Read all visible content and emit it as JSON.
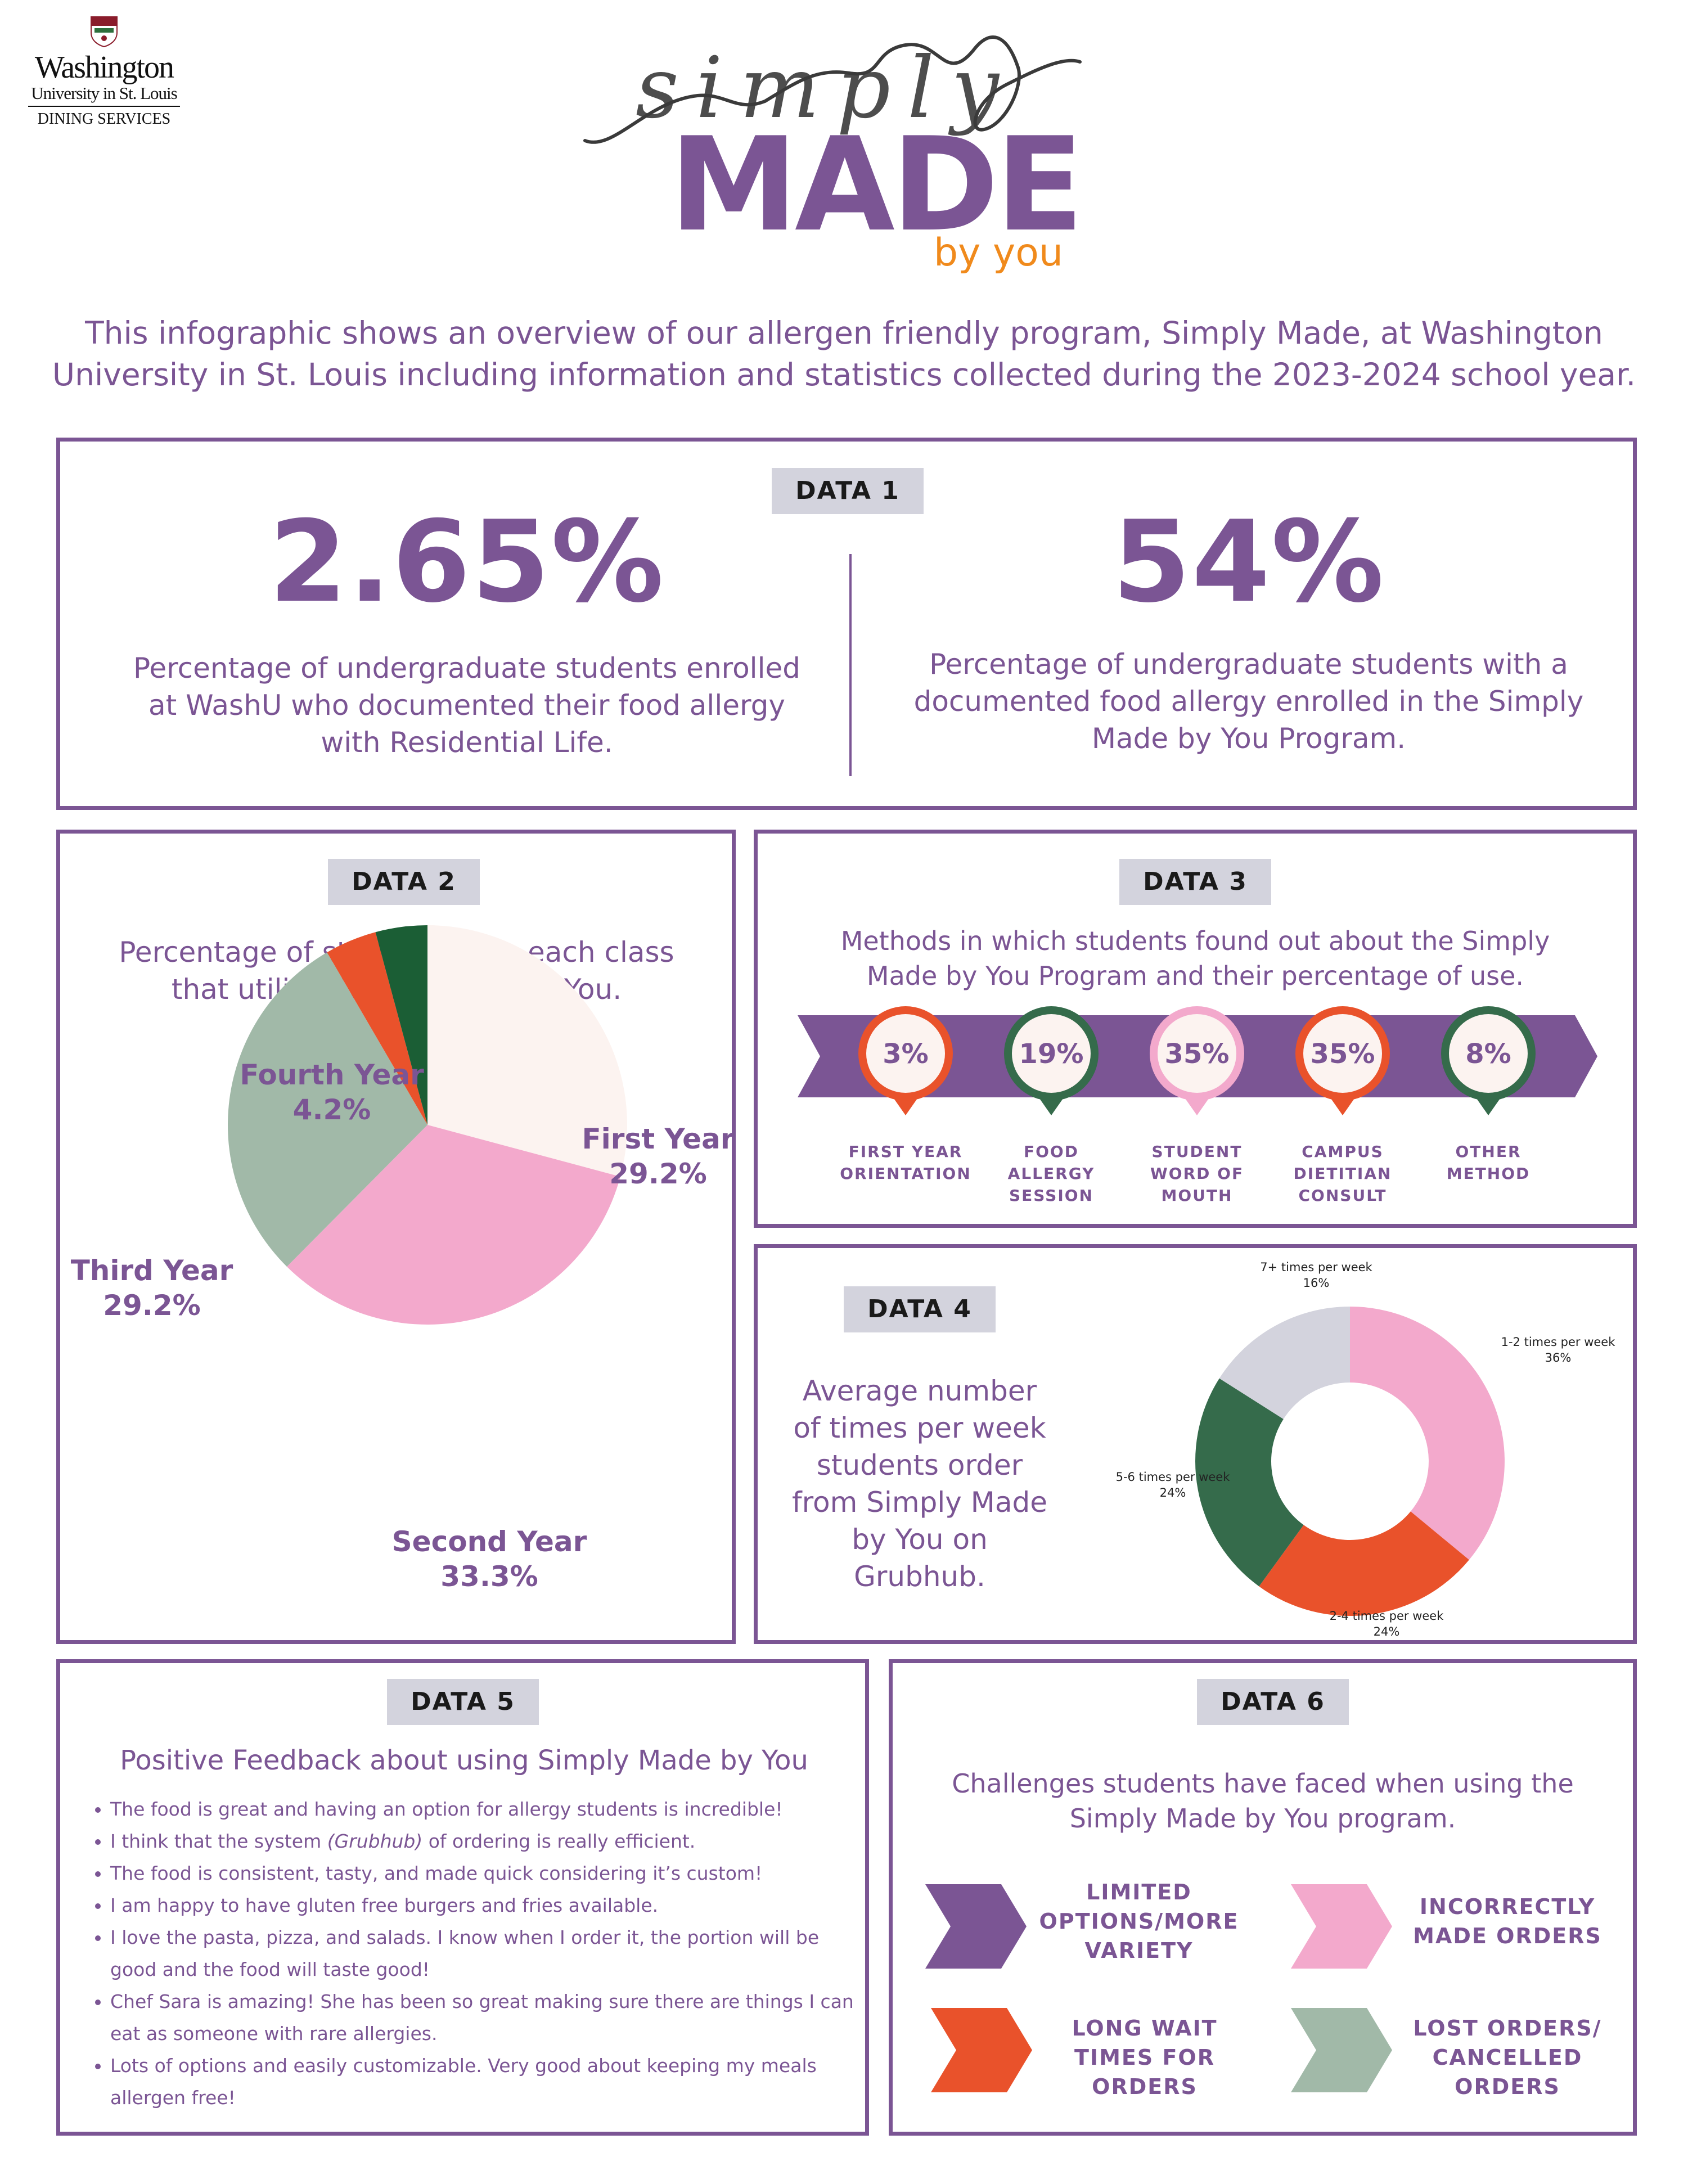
{
  "logo": {
    "line1": "Washington",
    "line2": "University in St. Louis",
    "line3": "DINING SERVICES"
  },
  "brand": {
    "script": "simply",
    "main": "MADE",
    "tagline": "by you"
  },
  "intro": {
    "line1": "This infographic shows an overview of our allergen friendly program, Simply Made, at Washington",
    "line2": "University in St. Louis including information and statistics collected during the 2023-2024 school year."
  },
  "data1": {
    "tag": "DATA 1",
    "stat_left": "2.65%",
    "desc_left": [
      "Percentage of undergraduate students enrolled",
      "at WashU who documented their food allergy",
      "with Residential Life."
    ],
    "stat_right": "54%",
    "desc_right": [
      "Percentage of undergraduate students with a",
      "documented food allergy enrolled in the Simply",
      "Made by You Program."
    ]
  },
  "data2": {
    "tag": "DATA 2",
    "desc": [
      "Percentage of students from each class",
      "that utilize Simply Made by You."
    ]
  },
  "data3": {
    "tag": "DATA 3",
    "desc": [
      "Methods in which students found out about the Simply",
      "Made by You Program and their percentage of use."
    ],
    "methods": [
      {
        "value": "3%",
        "label": [
          "FIRST YEAR",
          "ORIENTATION"
        ],
        "color": "#e9522b"
      },
      {
        "value": "19%",
        "label": [
          "FOOD",
          "ALLERGY",
          "SESSION"
        ],
        "color": "#356b4b"
      },
      {
        "value": "35%",
        "label": [
          "STUDENT",
          "WORD OF",
          "MOUTH"
        ],
        "color": "#f3a9cc"
      },
      {
        "value": "35%",
        "label": [
          "CAMPUS",
          "DIETITIAN",
          "CONSULT"
        ],
        "color": "#e9522b"
      },
      {
        "value": "8%",
        "label": [
          "OTHER",
          "METHOD"
        ],
        "color": "#356b4b"
      }
    ]
  },
  "data4": {
    "tag": "DATA 4",
    "desc": [
      "Average number",
      "of times per week",
      "students order",
      "from Simply Made",
      "by You on",
      "Grubhub."
    ]
  },
  "data5": {
    "tag": "DATA 5",
    "title": "Positive Feedback about using Simply Made by You",
    "items": [
      [
        "The food is great and having an option for allergy students is incredible!"
      ],
      [
        "I think that the system ",
        "(Grubhub)",
        " of ordering is really efficient."
      ],
      [
        "The food is consistent, tasty, and made quick considering it’s custom!"
      ],
      [
        "I am happy to have gluten free burgers and fries available."
      ],
      [
        "I love the pasta, pizza, and salads. I know when I order it, the portion will be good and the food will taste good!"
      ],
      [
        "Chef Sara is amazing! She has been so great making sure there are things I can eat as someone with rare allergies."
      ],
      [
        "Lots of options and easily customizable. Very good about keeping my meals allergen free!"
      ]
    ]
  },
  "data6": {
    "tag": "DATA 6",
    "desc": [
      "Challenges students have faced when using the",
      "Simply Made by You program."
    ],
    "items": [
      {
        "label": [
          "LIMITED",
          "OPTIONS/MORE",
          "VARIETY"
        ],
        "color": "#7b5594"
      },
      {
        "label": [
          "INCORRECTLY",
          "MADE ORDERS"
        ],
        "color": "#f3a9cc"
      },
      {
        "label": [
          "LONG WAIT",
          "TIMES FOR",
          "ORDERS"
        ],
        "color": "#e9522b"
      },
      {
        "label": [
          "LOST ORDERS/",
          "CANCELLED",
          "ORDERS"
        ],
        "color": "#a1b9a8"
      }
    ]
  },
  "colors": {
    "purple": "#7b5594",
    "orange": "#e9522b",
    "pink": "#f3a9cc",
    "sage": "#a1b9a8",
    "dark_green": "#1b5e35",
    "forest": "#356b4b",
    "cream": "#fcf3f0",
    "grey": "#d3d3dd"
  },
  "chart_data": [
    {
      "type": "pie",
      "categories": [
        "First Year",
        "Second Year",
        "Third Year",
        "Fourth Year"
      ],
      "values": [
        29.2,
        33.3,
        29.2,
        4.2
      ],
      "labels": [
        "29.2%",
        "33.3%",
        "29.2%",
        "4.2%"
      ],
      "colors": [
        "#fcf3f0",
        "#f3a9cc",
        "#a1b9a8",
        "#e9522b"
      ],
      "unlabeled_slice": {
        "value": 4.2,
        "color": "#1b5e35"
      }
    },
    {
      "type": "pie",
      "subtype": "donut",
      "categories": [
        "1-2 times per week",
        "2-4 times per week",
        "5-6 times per week",
        "7+ times per week"
      ],
      "values": [
        36,
        24,
        24,
        16
      ],
      "labels": [
        "36%",
        "24%",
        "24%",
        "16%"
      ],
      "colors": [
        "#f3a9cc",
        "#e9522b",
        "#356b4b",
        "#d3d3dd"
      ]
    }
  ]
}
